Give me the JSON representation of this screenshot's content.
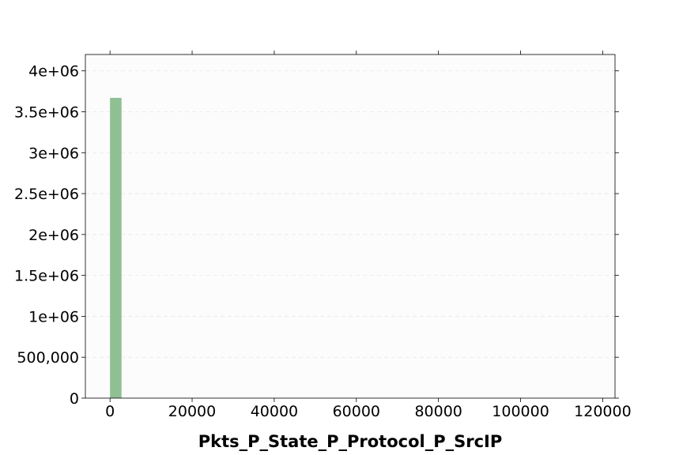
{
  "chart_data": {
    "type": "bar",
    "title": "",
    "xlabel": "Pkts_P_State_P_Protocol_P_SrcIP",
    "ylabel": "",
    "xlim": [
      -6000,
      123000
    ],
    "ylim": [
      0,
      4200000
    ],
    "grid": "horizontal dashed",
    "legend": "none",
    "bar_color": "#8fbf93",
    "bins": [
      {
        "x0": 0,
        "x1": 2800,
        "value": 3670000
      }
    ],
    "x_ticks": [
      {
        "value": 0,
        "label": "0"
      },
      {
        "value": 20000,
        "label": "20000"
      },
      {
        "value": 40000,
        "label": "40000"
      },
      {
        "value": 60000,
        "label": "60000"
      },
      {
        "value": 80000,
        "label": "80000"
      },
      {
        "value": 100000,
        "label": "100000"
      },
      {
        "value": 120000,
        "label": "120000"
      }
    ],
    "y_ticks": [
      {
        "value": 0,
        "label": "0"
      },
      {
        "value": 500000,
        "label": "500,000"
      },
      {
        "value": 1000000,
        "label": "1e+06"
      },
      {
        "value": 1500000,
        "label": "1.5e+06"
      },
      {
        "value": 2000000,
        "label": "2e+06"
      },
      {
        "value": 2500000,
        "label": "2.5e+06"
      },
      {
        "value": 3000000,
        "label": "3e+06"
      },
      {
        "value": 3500000,
        "label": "3.5e+06"
      },
      {
        "value": 4000000,
        "label": "4e+06"
      }
    ]
  }
}
